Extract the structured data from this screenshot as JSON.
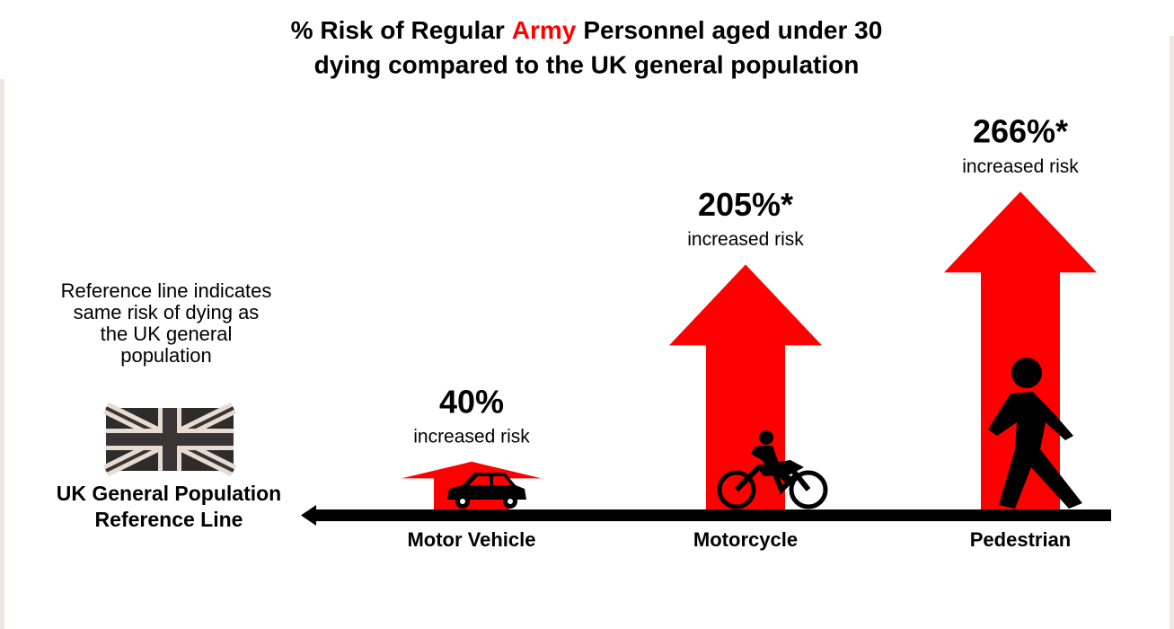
{
  "chart_data": {
    "type": "arrow",
    "title": {
      "line1": {
        "before": "% Risk of Regular",
        "highlight": "Army",
        "after": "Personnel aged under 30"
      },
      "line2": "dying compared to the UK general population"
    },
    "categories": [
      "Motor Vehicle",
      "Motorcycle",
      "Pedestrian"
    ],
    "values": [
      40,
      205,
      266
    ],
    "value_labels": [
      "40%",
      "205%*",
      "266%*"
    ],
    "annotation": "increased risk",
    "color": "#ff0000",
    "highlight_color": "#ff0000",
    "reference_note": [
      "Reference line indicates",
      "same risk of dying as",
      "the UK general",
      "population"
    ],
    "reference_label": [
      "UK General Population",
      "Reference Line"
    ]
  }
}
